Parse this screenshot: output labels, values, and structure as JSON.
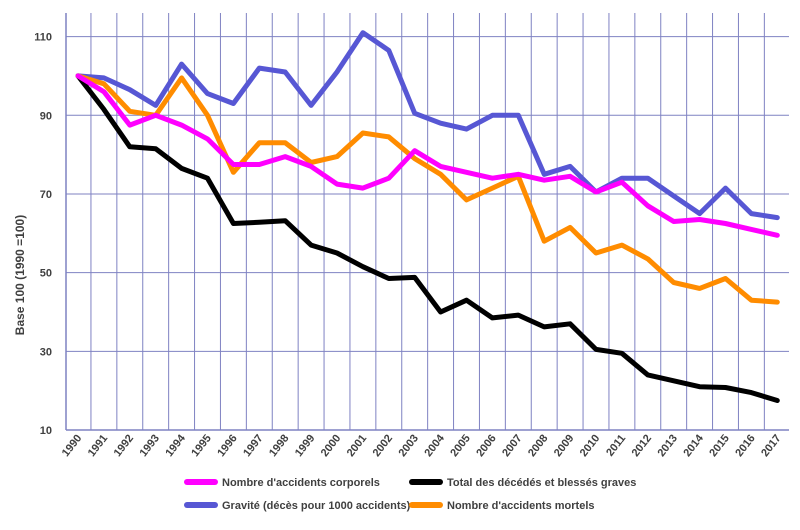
{
  "chart_data": {
    "type": "line",
    "title": "",
    "xlabel": "",
    "ylabel": "Base 100 (1990 =100)",
    "ylim": [
      10,
      116
    ],
    "yticks": [
      10,
      30,
      50,
      70,
      90,
      110
    ],
    "grid": true,
    "legend_position": "bottom",
    "x": [
      "1990",
      "1991",
      "1992",
      "1993",
      "1994",
      "1995",
      "1996",
      "1997",
      "1998",
      "1999",
      "2000",
      "2001",
      "2002",
      "2003",
      "2004",
      "2005",
      "2006",
      "2007",
      "2008",
      "2009",
      "2010",
      "2011",
      "2012",
      "2013",
      "2014",
      "2015",
      "2016",
      "2017"
    ],
    "series": [
      {
        "name": "Nombre d'accidents corporels",
        "color": "#ff00ff",
        "values": [
          100,
          96,
          87.5,
          90,
          87.5,
          84,
          77.5,
          77.5,
          79.5,
          77,
          72.5,
          71.5,
          74,
          81,
          77,
          75.5,
          74,
          75,
          73.5,
          74.5,
          70.5,
          73,
          67,
          63,
          63.5,
          62.5,
          61,
          59.5
        ]
      },
      {
        "name": "Total des décédés et blessés graves",
        "color": "#000000",
        "values": [
          100,
          91.5,
          82,
          81.5,
          76.5,
          74,
          62.5,
          62.8,
          63.2,
          57,
          55,
          51.5,
          48.5,
          48.8,
          40,
          43,
          38.5,
          39.2,
          36.2,
          37,
          30.5,
          29.5,
          24,
          22.5,
          21,
          20.8,
          19.5,
          17.5
        ]
      },
      {
        "name": "Gravité (décès pour 1000 accidents)",
        "color": "#5757d4",
        "values": [
          100,
          99.5,
          96.5,
          92.5,
          103,
          95.5,
          93,
          102,
          101,
          92.5,
          101,
          111,
          106.5,
          90.5,
          88,
          86.5,
          90,
          90,
          75,
          77,
          70.5,
          74,
          74,
          69.5,
          65,
          71.5,
          65,
          64
        ]
      },
      {
        "name": "Nombre d'accidents mortels",
        "color": "#ff8c00",
        "values": [
          100,
          98,
          91,
          90,
          99.5,
          90,
          75.5,
          83,
          83,
          78,
          79.5,
          85.5,
          84.5,
          79,
          75,
          68.5,
          71.5,
          74.5,
          58,
          61.5,
          55,
          57,
          53.5,
          47.5,
          46,
          48.5,
          43,
          42.5
        ]
      }
    ],
    "legend_order": [
      0,
      1,
      2,
      3
    ]
  }
}
